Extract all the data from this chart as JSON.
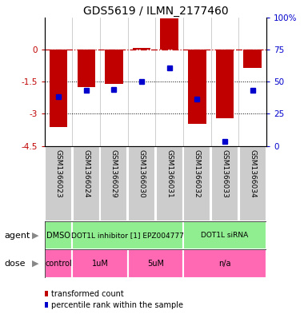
{
  "title": "GDS5619 / ILMN_2177460",
  "samples": [
    "GSM1366023",
    "GSM1366024",
    "GSM1366029",
    "GSM1366030",
    "GSM1366031",
    "GSM1366032",
    "GSM1366033",
    "GSM1366034"
  ],
  "bar_values": [
    -3.6,
    -1.75,
    -1.6,
    0.07,
    1.45,
    -3.45,
    -3.2,
    -0.85
  ],
  "dot_values": [
    -2.2,
    -1.9,
    -1.85,
    -1.5,
    -0.85,
    -2.3,
    -4.3,
    -1.9
  ],
  "ylim_left": [
    -4.5,
    1.5
  ],
  "ylim_right": [
    0,
    100
  ],
  "bar_color": "#C00000",
  "dot_color": "#0000CC",
  "red_color": "#C00000",
  "agent_groups": [
    {
      "label": "DMSO",
      "start": 0,
      "end": 1
    },
    {
      "label": "DOT1L inhibitor [1] EPZ004777",
      "start": 1,
      "end": 5
    },
    {
      "label": "DOT1L siRNA",
      "start": 5,
      "end": 8
    }
  ],
  "dose_groups": [
    {
      "label": "control",
      "start": 0,
      "end": 1
    },
    {
      "label": "1uM",
      "start": 1,
      "end": 3
    },
    {
      "label": "5uM",
      "start": 3,
      "end": 5
    },
    {
      "label": "n/a",
      "start": 5,
      "end": 8
    }
  ],
  "agent_color": "#90EE90",
  "dose_color": "#FF69B4",
  "cell_color": "#CCCCCC",
  "legend_items": [
    {
      "label": "transformed count",
      "color": "#C00000"
    },
    {
      "label": "percentile rank within the sample",
      "color": "#0000CC"
    }
  ]
}
